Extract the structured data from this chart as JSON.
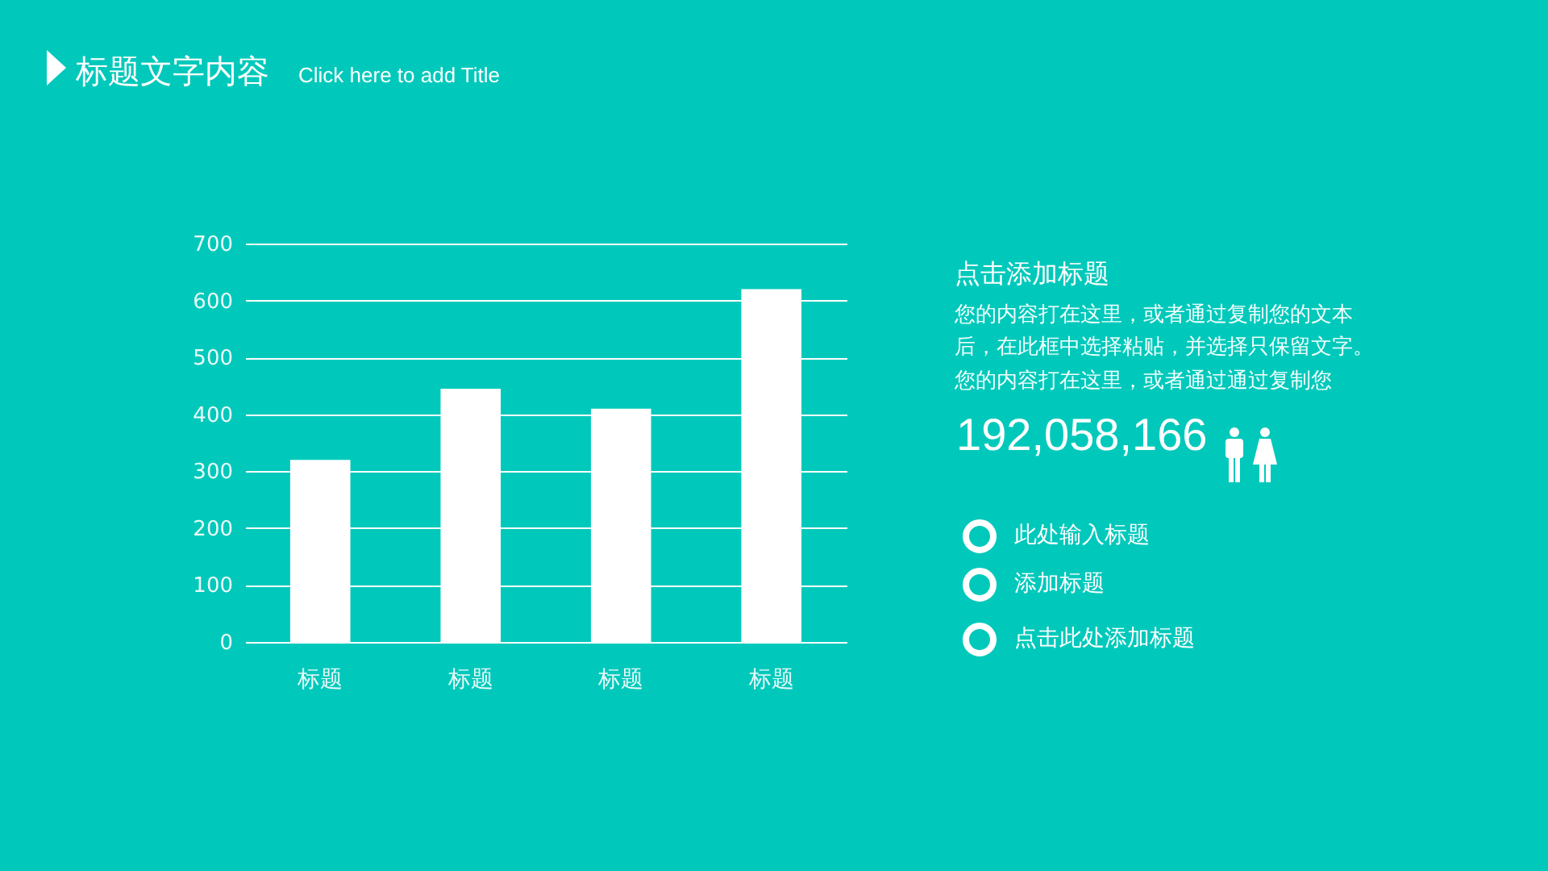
{
  "chart_data": [
    {
      "type": "bar",
      "title": "标题文字内容",
      "subtitle": "Click here to add Title",
      "categories": [
        "标题",
        "标题",
        "标题",
        "标题"
      ],
      "values": [
        320,
        445,
        410,
        620
      ],
      "color": "#ffffff",
      "ylim": [
        0,
        700
      ],
      "yticks": [
        0,
        100,
        200,
        300,
        400,
        500,
        600,
        700
      ],
      "grid": "y"
    },
    {
      "type": "other",
      "title": "点击添加标题",
      "annotations": [
        "您的内容打在这里，或者通过复制您的文本",
        "后，在此框中选择粘贴，并选择只保留文字。",
        "您的内容打在这里，或者通过通过复制您",
        "192,058,166",
        "此处输入标题",
        "添加标题",
        "点击此处添加标题"
      ]
    }
  ]
}
